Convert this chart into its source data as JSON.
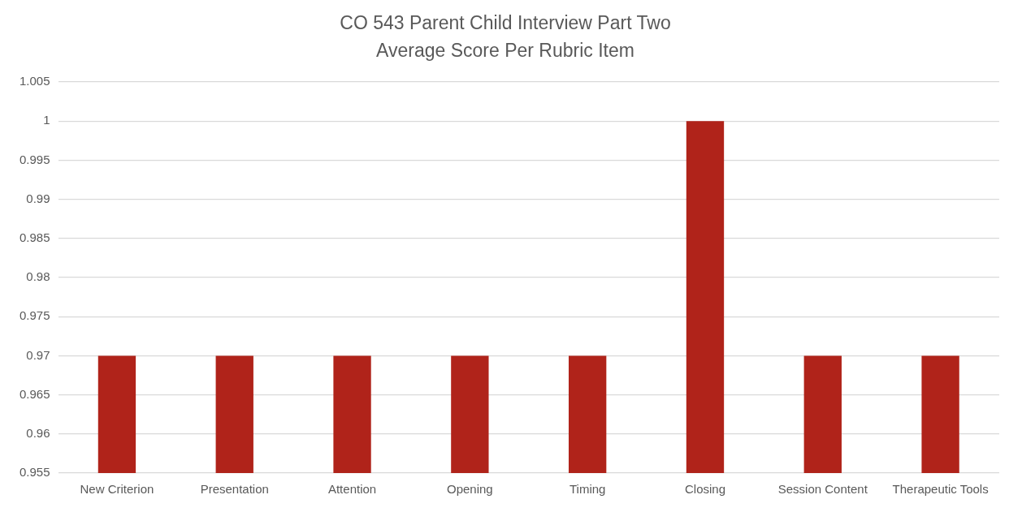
{
  "chart_data": {
    "type": "bar",
    "title": "CO 543 Parent Child Interview Part Two\nAverage Score Per Rubric Item",
    "categories": [
      "New Criterion",
      "Presentation",
      "Attention",
      "Opening",
      "Timing",
      "Closing",
      "Session Content",
      "Therapeutic Tools"
    ],
    "values": [
      0.97,
      0.97,
      0.97,
      0.97,
      0.97,
      1,
      0.97,
      0.97
    ],
    "color": "#b0231a",
    "ylim": [
      0.955,
      1.005
    ],
    "yticks": [
      0.955,
      0.96,
      0.965,
      0.97,
      0.975,
      0.98,
      0.985,
      0.99,
      0.995,
      1,
      1.005
    ],
    "grid": "y"
  }
}
